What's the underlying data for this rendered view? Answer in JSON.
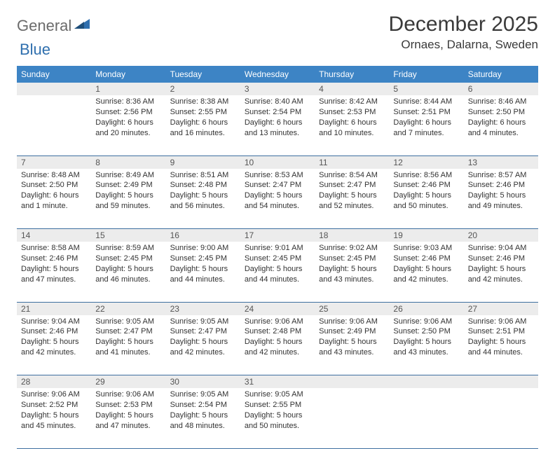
{
  "logo": {
    "part1": "General",
    "part2": "Blue"
  },
  "title": "December 2025",
  "location": "Ornaes, Dalarna, Sweden",
  "colors": {
    "header_bg": "#3d84c5",
    "header_text": "#ffffff",
    "daynum_bg": "#ececec",
    "border": "#3d6fa0",
    "logo_gray": "#6b6b6b",
    "logo_blue": "#2f6fae"
  },
  "weekdays": [
    "Sunday",
    "Monday",
    "Tuesday",
    "Wednesday",
    "Thursday",
    "Friday",
    "Saturday"
  ],
  "weeks": [
    [
      {
        "n": "",
        "sunrise": "",
        "sunset": "",
        "daylight": ""
      },
      {
        "n": "1",
        "sunrise": "Sunrise: 8:36 AM",
        "sunset": "Sunset: 2:56 PM",
        "daylight": "Daylight: 6 hours and 20 minutes."
      },
      {
        "n": "2",
        "sunrise": "Sunrise: 8:38 AM",
        "sunset": "Sunset: 2:55 PM",
        "daylight": "Daylight: 6 hours and 16 minutes."
      },
      {
        "n": "3",
        "sunrise": "Sunrise: 8:40 AM",
        "sunset": "Sunset: 2:54 PM",
        "daylight": "Daylight: 6 hours and 13 minutes."
      },
      {
        "n": "4",
        "sunrise": "Sunrise: 8:42 AM",
        "sunset": "Sunset: 2:53 PM",
        "daylight": "Daylight: 6 hours and 10 minutes."
      },
      {
        "n": "5",
        "sunrise": "Sunrise: 8:44 AM",
        "sunset": "Sunset: 2:51 PM",
        "daylight": "Daylight: 6 hours and 7 minutes."
      },
      {
        "n": "6",
        "sunrise": "Sunrise: 8:46 AM",
        "sunset": "Sunset: 2:50 PM",
        "daylight": "Daylight: 6 hours and 4 minutes."
      }
    ],
    [
      {
        "n": "7",
        "sunrise": "Sunrise: 8:48 AM",
        "sunset": "Sunset: 2:50 PM",
        "daylight": "Daylight: 6 hours and 1 minute."
      },
      {
        "n": "8",
        "sunrise": "Sunrise: 8:49 AM",
        "sunset": "Sunset: 2:49 PM",
        "daylight": "Daylight: 5 hours and 59 minutes."
      },
      {
        "n": "9",
        "sunrise": "Sunrise: 8:51 AM",
        "sunset": "Sunset: 2:48 PM",
        "daylight": "Daylight: 5 hours and 56 minutes."
      },
      {
        "n": "10",
        "sunrise": "Sunrise: 8:53 AM",
        "sunset": "Sunset: 2:47 PM",
        "daylight": "Daylight: 5 hours and 54 minutes."
      },
      {
        "n": "11",
        "sunrise": "Sunrise: 8:54 AM",
        "sunset": "Sunset: 2:47 PM",
        "daylight": "Daylight: 5 hours and 52 minutes."
      },
      {
        "n": "12",
        "sunrise": "Sunrise: 8:56 AM",
        "sunset": "Sunset: 2:46 PM",
        "daylight": "Daylight: 5 hours and 50 minutes."
      },
      {
        "n": "13",
        "sunrise": "Sunrise: 8:57 AM",
        "sunset": "Sunset: 2:46 PM",
        "daylight": "Daylight: 5 hours and 49 minutes."
      }
    ],
    [
      {
        "n": "14",
        "sunrise": "Sunrise: 8:58 AM",
        "sunset": "Sunset: 2:46 PM",
        "daylight": "Daylight: 5 hours and 47 minutes."
      },
      {
        "n": "15",
        "sunrise": "Sunrise: 8:59 AM",
        "sunset": "Sunset: 2:45 PM",
        "daylight": "Daylight: 5 hours and 46 minutes."
      },
      {
        "n": "16",
        "sunrise": "Sunrise: 9:00 AM",
        "sunset": "Sunset: 2:45 PM",
        "daylight": "Daylight: 5 hours and 44 minutes."
      },
      {
        "n": "17",
        "sunrise": "Sunrise: 9:01 AM",
        "sunset": "Sunset: 2:45 PM",
        "daylight": "Daylight: 5 hours and 44 minutes."
      },
      {
        "n": "18",
        "sunrise": "Sunrise: 9:02 AM",
        "sunset": "Sunset: 2:45 PM",
        "daylight": "Daylight: 5 hours and 43 minutes."
      },
      {
        "n": "19",
        "sunrise": "Sunrise: 9:03 AM",
        "sunset": "Sunset: 2:46 PM",
        "daylight": "Daylight: 5 hours and 42 minutes."
      },
      {
        "n": "20",
        "sunrise": "Sunrise: 9:04 AM",
        "sunset": "Sunset: 2:46 PM",
        "daylight": "Daylight: 5 hours and 42 minutes."
      }
    ],
    [
      {
        "n": "21",
        "sunrise": "Sunrise: 9:04 AM",
        "sunset": "Sunset: 2:46 PM",
        "daylight": "Daylight: 5 hours and 42 minutes."
      },
      {
        "n": "22",
        "sunrise": "Sunrise: 9:05 AM",
        "sunset": "Sunset: 2:47 PM",
        "daylight": "Daylight: 5 hours and 41 minutes."
      },
      {
        "n": "23",
        "sunrise": "Sunrise: 9:05 AM",
        "sunset": "Sunset: 2:47 PM",
        "daylight": "Daylight: 5 hours and 42 minutes."
      },
      {
        "n": "24",
        "sunrise": "Sunrise: 9:06 AM",
        "sunset": "Sunset: 2:48 PM",
        "daylight": "Daylight: 5 hours and 42 minutes."
      },
      {
        "n": "25",
        "sunrise": "Sunrise: 9:06 AM",
        "sunset": "Sunset: 2:49 PM",
        "daylight": "Daylight: 5 hours and 43 minutes."
      },
      {
        "n": "26",
        "sunrise": "Sunrise: 9:06 AM",
        "sunset": "Sunset: 2:50 PM",
        "daylight": "Daylight: 5 hours and 43 minutes."
      },
      {
        "n": "27",
        "sunrise": "Sunrise: 9:06 AM",
        "sunset": "Sunset: 2:51 PM",
        "daylight": "Daylight: 5 hours and 44 minutes."
      }
    ],
    [
      {
        "n": "28",
        "sunrise": "Sunrise: 9:06 AM",
        "sunset": "Sunset: 2:52 PM",
        "daylight": "Daylight: 5 hours and 45 minutes."
      },
      {
        "n": "29",
        "sunrise": "Sunrise: 9:06 AM",
        "sunset": "Sunset: 2:53 PM",
        "daylight": "Daylight: 5 hours and 47 minutes."
      },
      {
        "n": "30",
        "sunrise": "Sunrise: 9:05 AM",
        "sunset": "Sunset: 2:54 PM",
        "daylight": "Daylight: 5 hours and 48 minutes."
      },
      {
        "n": "31",
        "sunrise": "Sunrise: 9:05 AM",
        "sunset": "Sunset: 2:55 PM",
        "daylight": "Daylight: 5 hours and 50 minutes."
      },
      {
        "n": "",
        "sunrise": "",
        "sunset": "",
        "daylight": ""
      },
      {
        "n": "",
        "sunrise": "",
        "sunset": "",
        "daylight": ""
      },
      {
        "n": "",
        "sunrise": "",
        "sunset": "",
        "daylight": ""
      }
    ]
  ]
}
